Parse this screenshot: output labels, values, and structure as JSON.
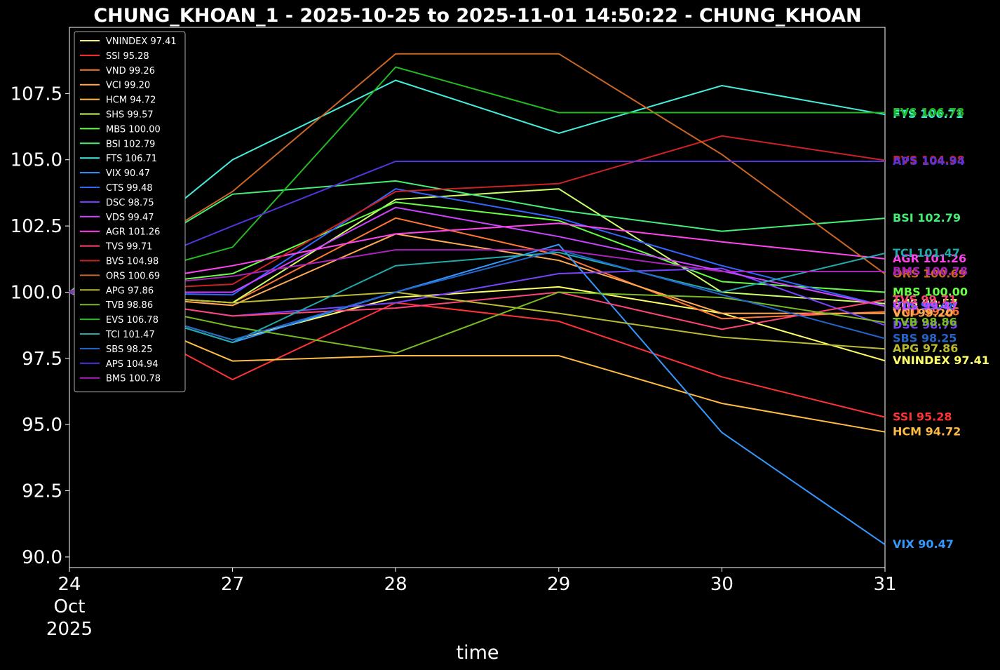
{
  "chart_data": {
    "type": "line",
    "title": "CHUNG_KHOAN_1 - 2025-10-25 to 2025-11-01 14:50:22 - CHUNG_KHOAN",
    "xlabel": "time",
    "ylabel": "",
    "x": [
      "24\nOct\n2025",
      "27",
      "28",
      "29",
      "30",
      "31"
    ],
    "ylim": [
      89.6,
      110.0
    ],
    "yticks": [
      "90.0",
      "92.5",
      "95.0",
      "97.5",
      "100.0",
      "102.5",
      "105.0",
      "107.5"
    ],
    "legend_position": "top-left",
    "grid": false,
    "series": [
      {
        "name": "VNINDEX 97.41",
        "end_label": "VNINDEX 97.41",
        "color": "#ffff66",
        "values": [
          100.0,
          98.2,
          99.8,
          100.2,
          99.2,
          97.41
        ]
      },
      {
        "name": "SSI 95.28",
        "end_label": "SSI 95.28",
        "color": "#ff3333",
        "values": [
          100.0,
          96.7,
          99.6,
          98.9,
          96.8,
          95.28
        ]
      },
      {
        "name": "VND 99.26",
        "end_label": "VND 99.26",
        "color": "#ff7733",
        "values": [
          100.0,
          99.6,
          102.8,
          101.4,
          99.0,
          99.26
        ]
      },
      {
        "name": "VCI 99.20",
        "end_label": "VCI 99.20",
        "color": "#ffaa55",
        "values": [
          100.0,
          99.5,
          102.2,
          101.2,
          99.2,
          99.2
        ]
      },
      {
        "name": "HCM 94.72",
        "end_label": "HCM 94.72",
        "color": "#ffbb44",
        "values": [
          100.0,
          97.4,
          97.6,
          97.6,
          95.8,
          94.72
        ]
      },
      {
        "name": "SHS 99.57",
        "end_label": "SHS 99.57",
        "color": "#ccff66",
        "values": [
          100.0,
          99.6,
          103.5,
          103.9,
          100.0,
          99.57
        ]
      },
      {
        "name": "MBS 100.00",
        "end_label": "MBS 100.00",
        "color": "#66ff44",
        "values": [
          100.0,
          100.7,
          103.4,
          102.7,
          100.4,
          100.0
        ]
      },
      {
        "name": "BSI 102.79",
        "end_label": "BSI 102.79",
        "color": "#44ee77",
        "values": [
          100.0,
          103.7,
          104.2,
          103.1,
          102.3,
          102.79
        ]
      },
      {
        "name": "FTS 106.71",
        "end_label": "FTS 106.71",
        "color": "#44eedd",
        "values": [
          100.0,
          105.0,
          108.0,
          106.0,
          107.8,
          106.71
        ]
      },
      {
        "name": "VIX 90.47",
        "end_label": "VIX 90.47",
        "color": "#3399ff",
        "values": [
          100.0,
          98.1,
          100.0,
          101.8,
          94.7,
          90.47
        ]
      },
      {
        "name": "CTS 99.48",
        "end_label": "CTS 99.48",
        "color": "#3366ff",
        "values": [
          100.0,
          99.9,
          103.9,
          102.8,
          101.0,
          99.48
        ]
      },
      {
        "name": "DSC 98.75",
        "end_label": "DSC 98.75",
        "color": "#7744ff",
        "values": [
          100.0,
          99.1,
          99.6,
          100.7,
          100.9,
          98.75
        ]
      },
      {
        "name": "VDS 99.47",
        "end_label": "VDS 99.47",
        "color": "#cc44ff",
        "values": [
          100.0,
          100.0,
          103.2,
          102.1,
          100.8,
          99.47
        ]
      },
      {
        "name": "AGR 101.26",
        "end_label": "AGR 101.26",
        "color": "#ff44ee",
        "values": [
          100.0,
          101.0,
          102.2,
          102.6,
          101.9,
          101.26
        ]
      },
      {
        "name": "TVS 99.71",
        "end_label": "TVS 99.71",
        "color": "#ff4477",
        "values": [
          100.0,
          99.1,
          99.4,
          100.0,
          98.6,
          99.71
        ]
      },
      {
        "name": "BVS 104.98",
        "end_label": "BVS 104.98",
        "color": "#cc2222",
        "values": [
          100.0,
          100.3,
          103.8,
          104.1,
          105.9,
          104.98
        ]
      },
      {
        "name": "ORS 100.69",
        "end_label": "ORS 100.69",
        "color": "#cc6622",
        "values": [
          100.0,
          103.8,
          109.0,
          109.0,
          105.2,
          100.69
        ]
      },
      {
        "name": "APG 97.86",
        "end_label": "APG 97.86",
        "color": "#bbbb33",
        "values": [
          100.0,
          99.6,
          100.0,
          99.2,
          98.3,
          97.86
        ]
      },
      {
        "name": "TVB 98.86",
        "end_label": "TVB 98.86",
        "color": "#77bb22",
        "values": [
          100.0,
          98.7,
          97.7,
          100.0,
          99.8,
          98.86
        ]
      },
      {
        "name": "EVS 106.78",
        "end_label": "EVS 106.78",
        "color": "#22bb22",
        "values": [
          100.0,
          101.7,
          108.5,
          106.78,
          106.78,
          106.78
        ]
      },
      {
        "name": "TCI 101.47",
        "end_label": "TCI 101.47",
        "color": "#22aaaa",
        "values": [
          100.0,
          98.1,
          101.0,
          101.5,
          100.0,
          101.47
        ]
      },
      {
        "name": "SBS 98.25",
        "end_label": "SBS 98.25",
        "color": "#2266cc",
        "values": [
          100.0,
          98.2,
          100.0,
          101.6,
          99.9,
          98.25
        ]
      },
      {
        "name": "APS 104.94",
        "end_label": "APS 104.94",
        "color": "#5533dd",
        "values": [
          100.0,
          102.5,
          104.94,
          104.94,
          104.94,
          104.94
        ]
      },
      {
        "name": "BMS 100.78",
        "end_label": "BMS 100.78",
        "color": "#aa22bb",
        "values": [
          100.0,
          100.6,
          101.6,
          101.6,
          100.78,
          100.78
        ]
      }
    ]
  }
}
